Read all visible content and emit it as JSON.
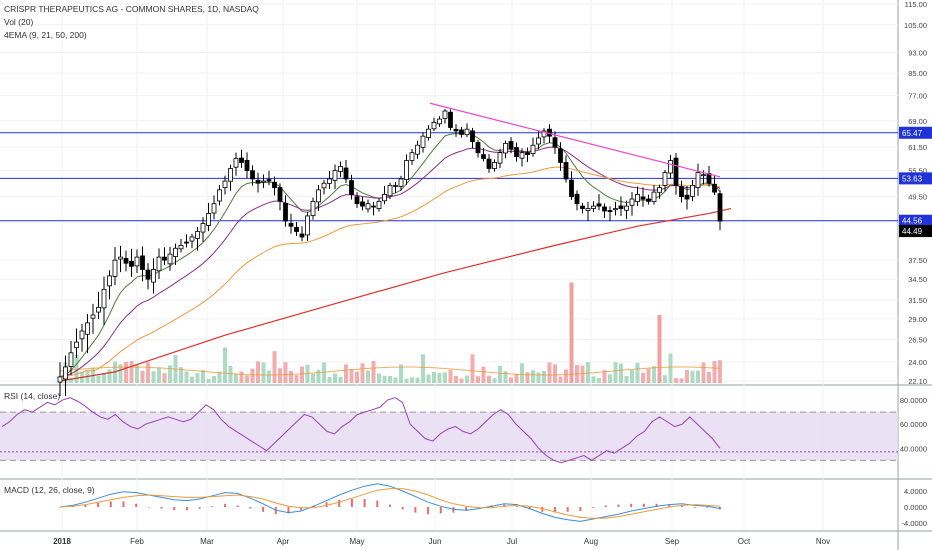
{
  "header": {
    "symbol_title": "CRISPR THERAPEUTICS AG - COMMON SHARES, 1D, NASDAQ",
    "vol_label": "Vol (20)",
    "ema_label": "4EMA (9, 21, 50, 200)"
  },
  "rsi_label": "RSI (14, close)",
  "macd_label": "MACD (12, 26, close, 9)",
  "colors": {
    "up": "#ffffff",
    "down": "#000000",
    "wick": "#000000",
    "ema9": "#4e7d3a",
    "ema21": "#8b2c8e",
    "ema50": "#ee9a3a",
    "ema200": "#e0302a",
    "hline": "#1f33d6",
    "trend": "#e649d2",
    "rsi": "#9b3fb8",
    "rsi_band": "#e6d9f1",
    "macd": "#3a8ed8",
    "signal": "#ee9a3a",
    "hist": "#e0302a",
    "vol": "#f0a0a0",
    "vol_up": "#9fd3b8"
  },
  "chart_data": [
    {
      "type": "candlestick",
      "panel": "price",
      "x_ticks": [
        "2018",
        "Feb",
        "Mar",
        "Apr",
        "May",
        "Jun",
        "Jul",
        "Aug",
        "Sep",
        "Oct",
        "Nov"
      ],
      "y_ticks": [
        "115.00",
        "105.00",
        "93.00",
        "85.00",
        "77.00",
        "69.00",
        "61.50",
        "55.50",
        "49.50",
        "44.50",
        "37.50",
        "34.50",
        "31.50",
        "29.00",
        "26.50",
        "24.00",
        "22.10"
      ],
      "price_tags": [
        {
          "value": "65.47",
          "kind": "line"
        },
        {
          "value": "53.63",
          "kind": "line"
        },
        {
          "value": "44.56",
          "kind": "line"
        },
        {
          "value": "44.49",
          "kind": "last"
        }
      ],
      "horizontal_levels": [
        65.47,
        53.63,
        44.56
      ],
      "trendline": [
        [
          0.0,
          74.5
        ],
        [
          1.0,
          54.0
        ]
      ],
      "closes": [
        22.5,
        23.5,
        25,
        26.2,
        27.5,
        28.5,
        29.5,
        30.5,
        33,
        35,
        37.5,
        38,
        37,
        36.5,
        38,
        36,
        34.5,
        36,
        38,
        37.5,
        38.5,
        39.5,
        40,
        40.5,
        41.5,
        42.5,
        44,
        46,
        48,
        51,
        53,
        56,
        58.5,
        57.5,
        55.5,
        53.5,
        52.5,
        53,
        53,
        51.5,
        48.5,
        44.5,
        43.5,
        42.5,
        41.5,
        45.5,
        48.5,
        51,
        52.5,
        53.5,
        55.5,
        56.5,
        53.5,
        50,
        48,
        47.5,
        48,
        47.5,
        48.5,
        50,
        52,
        52,
        53.5,
        58,
        60,
        62,
        64.5,
        66.5,
        68.5,
        69.5,
        72,
        67,
        66,
        65,
        66.5,
        63,
        60,
        58.5,
        56,
        57.5,
        60,
        62.5,
        61,
        59,
        60,
        59.5,
        62,
        64,
        66,
        64.5,
        61.5,
        57.5,
        53.5,
        49.5,
        48,
        47,
        47,
        47.5,
        47.5,
        46.5,
        46.5,
        47,
        47,
        47.5,
        49,
        50,
        49,
        48.5,
        50.5,
        51.5,
        55,
        58,
        52,
        49.5,
        49,
        52,
        55,
        54.5,
        52.5,
        50.5,
        44.5
      ],
      "ema200": [
        [
          0,
          22.1
        ],
        [
          10,
          23
        ],
        [
          30,
          27
        ],
        [
          50,
          31
        ],
        [
          70,
          35.5
        ],
        [
          90,
          40
        ],
        [
          105,
          43.5
        ],
        [
          118,
          46
        ],
        [
          122,
          47
        ]
      ],
      "volume_spikes": [
        [
          93,
          34
        ],
        [
          109,
          29.5
        ]
      ]
    },
    {
      "type": "line",
      "panel": "rsi",
      "y_ticks": [
        "80.0000",
        "60.0000",
        "40.0000"
      ],
      "band": [
        30,
        70
      ],
      "values": [
        58,
        62,
        68,
        72,
        70,
        74,
        78,
        76,
        80,
        82,
        79,
        75,
        70,
        66,
        64,
        68,
        62,
        58,
        56,
        60,
        62,
        64,
        66,
        64,
        62,
        64,
        70,
        76,
        72,
        64,
        58,
        54,
        50,
        46,
        42,
        38,
        44,
        50,
        56,
        62,
        68,
        66,
        60,
        54,
        52,
        58,
        62,
        68,
        70,
        72,
        74,
        80,
        82,
        78,
        60,
        54,
        48,
        46,
        52,
        56,
        58,
        54,
        52,
        56,
        62,
        68,
        72,
        68,
        60,
        54,
        48,
        40,
        34,
        30,
        28,
        30,
        32,
        34,
        30,
        34,
        38,
        36,
        40,
        44,
        50,
        54,
        62,
        66,
        62,
        58,
        60,
        66,
        60,
        54,
        48,
        40
      ]
    },
    {
      "type": "line",
      "panel": "macd",
      "y_ticks": [
        "4.0000",
        "0.0000",
        "-4.0000"
      ],
      "macd": [
        0,
        0.4,
        1.2,
        2.2,
        3.2,
        3.8,
        3.6,
        3.0,
        2.4,
        1.8,
        1.6,
        2.0,
        2.8,
        3.6,
        3.4,
        2.2,
        0.8,
        -0.8,
        -1.4,
        -1.0,
        0.2,
        1.6,
        3.0,
        4.2,
        5.2,
        5.8,
        5.2,
        4.0,
        2.6,
        1.2,
        0.2,
        -0.6,
        -0.8,
        -0.4,
        0.2,
        0.8,
        0.6,
        -0.4,
        -1.6,
        -2.6,
        -3.2,
        -3.6,
        -3.0,
        -2.4,
        -1.8,
        -1.0,
        -0.4,
        0.2,
        0.6,
        0.8,
        0.4,
        0.2,
        -0.4
      ],
      "signal": [
        0,
        0.2,
        0.6,
        1.2,
        1.8,
        2.4,
        2.8,
        3.0,
        2.8,
        2.6,
        2.4,
        2.4,
        2.6,
        2.8,
        3.0,
        2.6,
        2.0,
        1.0,
        0.2,
        -0.2,
        -0.2,
        0.4,
        1.2,
        2.2,
        3.2,
        4.2,
        4.6,
        4.6,
        4.0,
        3.0,
        1.8,
        0.8,
        0.2,
        -0.2,
        -0.2,
        0.2,
        0.4,
        0.2,
        -0.4,
        -1.2,
        -2.0,
        -2.6,
        -2.8,
        -2.8,
        -2.4,
        -1.8,
        -1.2,
        -0.6,
        0,
        0.4,
        0.6,
        0.4,
        0.2
      ]
    }
  ]
}
